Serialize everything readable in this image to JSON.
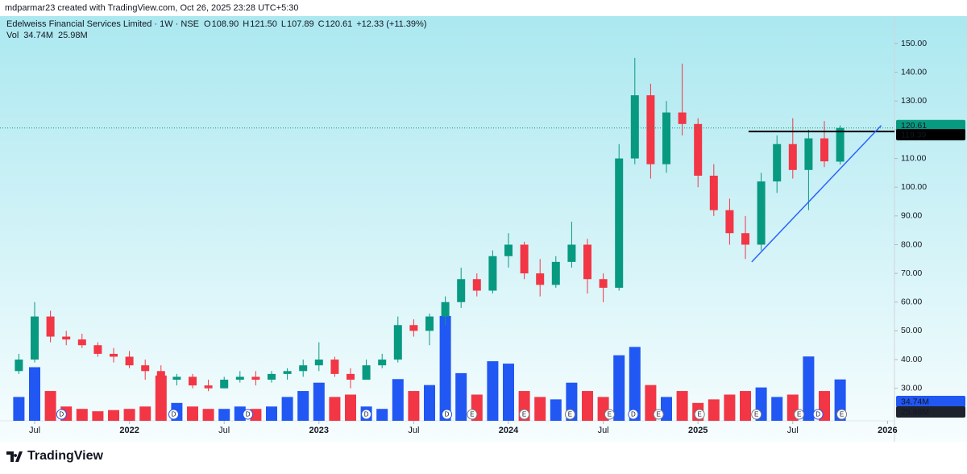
{
  "header": {
    "creator": "mdparmar23 created with TradingView.com, Oct 26, 2025 23:28 UTC+5:30"
  },
  "chart_data": {
    "type": "candlestick",
    "title": "Edelweiss Financial Services Limited · 1W · NSE",
    "legend_items": [
      {
        "key": "O",
        "value": "108.90"
      },
      {
        "key": "H",
        "value": "121.50"
      },
      {
        "key": "L",
        "value": "107.89"
      },
      {
        "key": "C",
        "value": "120.61"
      }
    ],
    "change": "+12.33 (+11.39%)",
    "volume_title": "Vol",
    "volume_legend": [
      "34.74M",
      "25.98M"
    ],
    "categories": [
      null,
      null,
      null,
      null,
      null,
      null,
      null,
      null,
      null,
      null,
      null,
      null,
      null,
      null,
      null,
      null,
      null,
      null,
      null,
      null,
      null,
      null,
      null,
      null,
      null,
      null,
      null,
      null,
      null,
      null,
      null,
      null,
      null,
      null,
      null,
      null,
      null,
      null,
      null,
      null,
      null,
      null,
      null,
      null,
      null,
      null,
      null,
      null,
      null,
      null,
      null,
      null,
      null
    ],
    "open": [
      36,
      40,
      55,
      48,
      47,
      45,
      42,
      41,
      38,
      36,
      33,
      34,
      31,
      30,
      33,
      34,
      33,
      35,
      36,
      38,
      40,
      35,
      33,
      38,
      40,
      52,
      50,
      55,
      60,
      68,
      64,
      76,
      80,
      70,
      66,
      74,
      80,
      68,
      65,
      110,
      132,
      108,
      126,
      122,
      104,
      92,
      84,
      80,
      102,
      115,
      106,
      117,
      108.9
    ],
    "high": [
      42,
      60,
      57,
      50,
      49,
      46,
      44,
      43,
      40,
      38,
      35,
      35,
      33,
      34,
      36,
      36,
      36,
      37,
      40,
      46,
      41,
      37,
      40,
      42,
      55,
      54,
      56,
      62,
      72,
      70,
      78,
      84,
      81,
      75,
      76,
      88,
      82,
      70,
      115,
      145,
      136,
      130,
      143,
      124,
      108,
      96,
      90,
      105,
      118,
      124,
      120,
      123,
      121.5
    ],
    "low": [
      35,
      39,
      46,
      45,
      44,
      41,
      39,
      37,
      33,
      30,
      31,
      30,
      29,
      30,
      32,
      31,
      32,
      33,
      34,
      36,
      34,
      30,
      33,
      37,
      39,
      48,
      45,
      52,
      58,
      62,
      63,
      72,
      68,
      62,
      65,
      72,
      63,
      60,
      64,
      108,
      103,
      105,
      118,
      100,
      90,
      80,
      75,
      78,
      98,
      103,
      92,
      107,
      107.89
    ],
    "close": [
      40,
      55,
      48,
      47,
      45,
      42,
      41,
      38,
      36,
      33,
      34,
      31,
      30,
      33,
      34,
      33,
      35,
      36,
      38,
      40,
      35,
      33,
      38,
      40,
      52,
      50,
      55,
      60,
      68,
      64,
      76,
      80,
      70,
      66,
      74,
      80,
      68,
      65,
      110,
      132,
      108,
      126,
      122,
      104,
      92,
      84,
      80,
      102,
      115,
      106,
      117,
      109,
      120.61
    ],
    "volume": [
      20,
      45,
      25,
      12,
      10,
      8,
      9,
      10,
      12,
      38,
      15,
      12,
      10,
      10,
      12,
      10,
      12,
      20,
      25,
      32,
      20,
      22,
      12,
      10,
      35,
      25,
      30,
      88,
      40,
      22,
      50,
      48,
      25,
      20,
      18,
      32,
      25,
      20,
      55,
      62,
      30,
      20,
      25,
      15,
      18,
      22,
      25,
      28,
      20,
      22,
      54,
      25,
      34.74
    ],
    "up_color": "#089981",
    "down_color": "#f23645",
    "volume_up_color": "#2157f3",
    "volume_down_color": "#f23645",
    "ylim": [
      13.64,
      153.93
    ],
    "volume_ylim": [
      0,
      90
    ],
    "yticks": [
      {
        "value": 30,
        "label": "30.00"
      },
      {
        "value": 40,
        "label": "40.00"
      },
      {
        "value": 50,
        "label": "50.00"
      },
      {
        "value": 60,
        "label": "60.00"
      },
      {
        "value": 70,
        "label": "70.00"
      },
      {
        "value": 80,
        "label": "80.00"
      },
      {
        "value": 90,
        "label": "90.00"
      },
      {
        "value": 100,
        "label": "100.00"
      },
      {
        "value": 110,
        "label": "110.00"
      },
      {
        "value": 120,
        "label": "120.00"
      },
      {
        "value": 130,
        "label": "130.00"
      },
      {
        "value": 140,
        "label": "140.00"
      },
      {
        "value": 150,
        "label": "150.00"
      }
    ],
    "xticks": [
      {
        "value": 1,
        "label": "Jul"
      },
      {
        "value": 7,
        "label": "2022"
      },
      {
        "value": 13,
        "label": "Jul"
      },
      {
        "value": 19,
        "label": "2023"
      },
      {
        "value": 25,
        "label": "Jul"
      },
      {
        "value": 31,
        "label": "2024"
      },
      {
        "value": 37,
        "label": "Jul"
      },
      {
        "value": 43,
        "label": "2025"
      },
      {
        "value": 49,
        "label": "Jul"
      },
      {
        "value": 55,
        "label": "2026"
      }
    ],
    "last_price": {
      "value": 120.61,
      "label": "120.61"
    },
    "level": {
      "value": 119.39,
      "label": "119.39",
      "start": 46.2
    },
    "trendline": {
      "from": [
        46.4,
        74
      ],
      "to": [
        54.6,
        121.5
      ],
      "color": "#2962ff"
    },
    "volume_label": {
      "value": 34.74,
      "label": "34.74M"
    },
    "volume_ma_label": {
      "value": 25.98,
      "label": "25.98M"
    },
    "events": [
      {
        "label": "D",
        "x": 2.7
      },
      {
        "label": "D",
        "x": 9.8
      },
      {
        "label": "D",
        "x": 14.5
      },
      {
        "label": "D",
        "x": 22
      },
      {
        "label": "D",
        "x": 27.1
      },
      {
        "label": "E",
        "x": 28.7
      },
      {
        "label": "E",
        "x": 32
      },
      {
        "label": "E",
        "x": 34.9
      },
      {
        "label": "E",
        "x": 37.4
      },
      {
        "label": "D",
        "x": 38.9
      },
      {
        "label": "E",
        "x": 40.5
      },
      {
        "label": "E",
        "x": 43.1
      },
      {
        "label": "E",
        "x": 46.7
      },
      {
        "label": "E",
        "x": 49.4
      },
      {
        "label": "D",
        "x": 50.6
      },
      {
        "label": "E",
        "x": 52.1
      }
    ]
  },
  "footer": {
    "brand": "TradingView"
  }
}
